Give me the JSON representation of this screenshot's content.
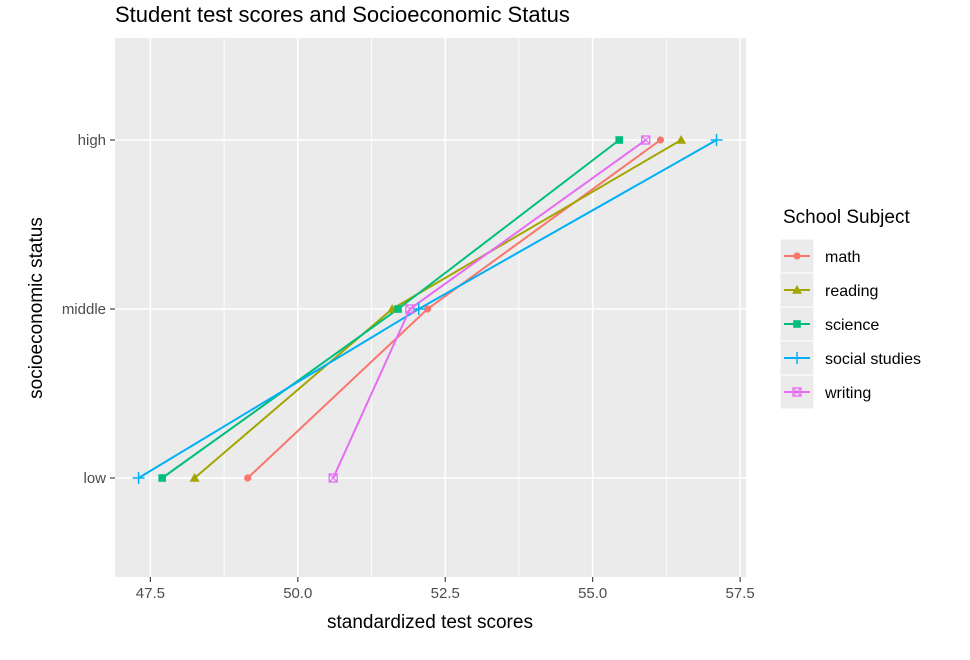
{
  "chart_data": {
    "type": "line",
    "title": "Student test scores and Socioeconomic Status",
    "xlabel": "standardized test scores",
    "ylabel": "socioeconomic status",
    "xlim": [
      46.9,
      57.6
    ],
    "x_ticks": [
      47.5,
      50.0,
      52.5,
      55.0,
      57.5
    ],
    "x_tick_labels": [
      "47.5",
      "50.0",
      "52.5",
      "55.0",
      "57.5"
    ],
    "categories": [
      "low",
      "middle",
      "high"
    ],
    "grid": true,
    "legend": {
      "title": "School Subject",
      "position": "right"
    },
    "series": [
      {
        "name": "math",
        "color": "#F8766D",
        "marker": "circle",
        "x": [
          49.15,
          52.2,
          56.15
        ]
      },
      {
        "name": "reading",
        "color": "#A3A500",
        "marker": "triangle",
        "x": [
          48.25,
          51.6,
          56.5
        ]
      },
      {
        "name": "science",
        "color": "#00BF7D",
        "marker": "square",
        "x": [
          47.7,
          51.7,
          55.45
        ]
      },
      {
        "name": "social studies",
        "color": "#00B0F6",
        "marker": "plus",
        "x": [
          47.3,
          52.05,
          57.1
        ]
      },
      {
        "name": "writing",
        "color": "#E76BF3",
        "marker": "boxed-x",
        "x": [
          50.6,
          51.9,
          55.9
        ]
      }
    ]
  }
}
